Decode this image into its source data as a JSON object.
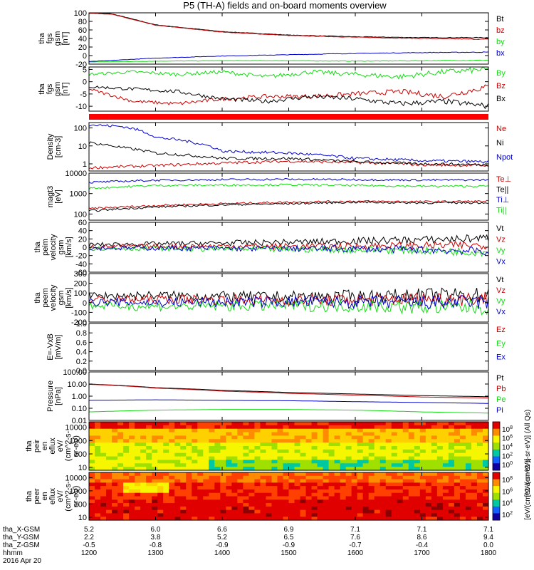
{
  "title": "P5 (TH-A) fields and on-board moments overview",
  "colors": {
    "black": "#000000",
    "red": "#cc0000",
    "green": "#11dd11",
    "blue": "#0000cc"
  },
  "chart_data": [
    {
      "type": "line",
      "panel": "fgs-gsm",
      "ylabel": [
        "tha",
        "fgs",
        "gsm",
        "[nT]"
      ],
      "yticks": [
        "100",
        "80",
        "60",
        "40",
        "20",
        "0",
        "-20"
      ],
      "ylim": [
        -20,
        100
      ],
      "series": [
        {
          "name": "Bt",
          "color": "black",
          "x": [
            0,
            20,
            60,
            120,
            180,
            240,
            300,
            360
          ],
          "values": [
            100,
            98,
            72,
            56,
            48,
            44,
            42,
            42
          ]
        },
        {
          "name": "bz",
          "color": "red",
          "x": [
            0,
            20,
            60,
            120,
            180,
            240,
            300,
            360
          ],
          "values": [
            99,
            97,
            71,
            55,
            47,
            43,
            40,
            38
          ]
        },
        {
          "name": "by",
          "color": "green",
          "x": [
            0,
            60,
            120,
            180,
            240,
            300,
            360
          ],
          "values": [
            -15,
            -13,
            -12,
            -12,
            -13,
            -12,
            -11
          ]
        },
        {
          "name": "bx",
          "color": "blue",
          "x": [
            0,
            60,
            120,
            180,
            240,
            300,
            360
          ],
          "values": [
            -14,
            -6,
            -1,
            2,
            5,
            7,
            8
          ]
        }
      ]
    },
    {
      "type": "line",
      "panel": "fgs-gsm-zoom",
      "ylabel": [
        "tha",
        "fgs",
        "gsm",
        "[nT]"
      ],
      "yticks": [
        "5",
        "0",
        "-5",
        "-10"
      ],
      "ylim": [
        -12,
        6
      ],
      "series": [
        {
          "name": "By",
          "color": "green",
          "x": [
            0,
            40,
            80,
            120,
            160,
            200,
            240,
            280,
            320,
            360
          ],
          "values": [
            3,
            4,
            3,
            4,
            2,
            4,
            3,
            2,
            4,
            5
          ]
        },
        {
          "name": "Bz",
          "color": "red",
          "x": [
            0,
            40,
            80,
            120,
            160,
            200,
            240,
            280,
            320,
            360
          ],
          "values": [
            -3,
            -8,
            -9,
            -7,
            -6,
            -6,
            -5,
            -4,
            -6,
            -2
          ]
        },
        {
          "name": "Bx",
          "color": "black",
          "x": [
            0,
            40,
            80,
            120,
            160,
            200,
            240,
            280,
            320,
            360
          ],
          "values": [
            -2,
            -3,
            -4,
            -7,
            -8,
            -6,
            -7,
            -9,
            -8,
            -10
          ]
        }
      ]
    },
    {
      "type": "line",
      "panel": "density",
      "ylabel": [
        "Density",
        "[cm-3]"
      ],
      "yticks": [
        "100",
        "10",
        "1"
      ],
      "ylim": [
        0.4,
        200
      ],
      "yscale": "log",
      "series": [
        {
          "name": "Ne",
          "color": "red",
          "x": [
            0,
            60,
            120,
            180,
            240,
            300,
            360
          ],
          "values": [
            0.6,
            0.8,
            1.1,
            1.4,
            1.2,
            0.9,
            0.8
          ]
        },
        {
          "name": "Ni",
          "color": "black",
          "x": [
            0,
            30,
            60,
            120,
            180,
            240,
            300,
            360
          ],
          "values": [
            15,
            8,
            4,
            2,
            2,
            1.3,
            1,
            0.9
          ]
        },
        {
          "name": "Npot",
          "color": "blue",
          "x": [
            0,
            30,
            60,
            120,
            180,
            240,
            300,
            360
          ],
          "values": [
            150,
            120,
            30,
            5,
            4,
            2,
            1.5,
            1.3
          ]
        }
      ]
    },
    {
      "type": "line",
      "panel": "temperature",
      "ylabel": [
        "magt3",
        "[eV]"
      ],
      "yticks": [
        "10000",
        "1000",
        "100"
      ],
      "ylim": [
        50,
        10000
      ],
      "yscale": "log",
      "series": [
        {
          "name": "Te⊥",
          "color": "red",
          "x": [
            0,
            60,
            120,
            180,
            240,
            300,
            360
          ],
          "values": [
            180,
            260,
            320,
            380,
            420,
            400,
            420
          ]
        },
        {
          "name": "Te||",
          "color": "black",
          "x": [
            0,
            60,
            120,
            180,
            240,
            300,
            360
          ],
          "values": [
            140,
            220,
            280,
            320,
            380,
            350,
            360
          ]
        },
        {
          "name": "Ti⊥",
          "color": "blue",
          "x": [
            0,
            60,
            120,
            180,
            240,
            300,
            360
          ],
          "values": [
            3500,
            4500,
            4800,
            5000,
            4800,
            4600,
            4700
          ]
        },
        {
          "name": "Ti||",
          "color": "green",
          "x": [
            0,
            60,
            120,
            180,
            240,
            300,
            360
          ],
          "values": [
            1800,
            2500,
            2600,
            2700,
            2500,
            2300,
            2300
          ]
        }
      ]
    },
    {
      "type": "line",
      "panel": "peim-velocity",
      "ylabel": [
        "tha",
        "peim",
        "velocity",
        "gsm",
        "[km/s]"
      ],
      "yticks": [
        "60",
        "40",
        "20",
        "0",
        "-20",
        "-40",
        "-60"
      ],
      "ylim": [
        -60,
        60
      ],
      "series": [
        {
          "name": "Vt",
          "color": "black",
          "x": [
            0,
            60,
            120,
            180,
            240,
            300,
            360
          ],
          "values": [
            6,
            8,
            10,
            12,
            15,
            18,
            22
          ]
        },
        {
          "name": "Vz",
          "color": "red",
          "x": [
            0,
            60,
            120,
            180,
            240,
            300,
            360
          ],
          "values": [
            2,
            2,
            3,
            2,
            3,
            4,
            5
          ]
        },
        {
          "name": "Vy",
          "color": "green",
          "x": [
            0,
            60,
            120,
            180,
            240,
            300,
            360
          ],
          "values": [
            -3,
            -3,
            -4,
            -5,
            -6,
            -8,
            -12
          ]
        },
        {
          "name": "Vx",
          "color": "blue",
          "x": [
            0,
            60,
            120,
            180,
            240,
            300,
            360
          ],
          "values": [
            -2,
            -2,
            -3,
            -3,
            -4,
            -6,
            -10
          ]
        }
      ]
    },
    {
      "type": "line",
      "panel": "peem-velocity",
      "ylabel": [
        "tha",
        "peem",
        "velocity",
        "gsm",
        "[km/s]"
      ],
      "yticks": [
        "300",
        "200",
        "100",
        "0",
        "-100",
        "-200"
      ],
      "ylim": [
        -200,
        300
      ],
      "series": [
        {
          "name": "Vt",
          "color": "black",
          "x": [
            0,
            60,
            120,
            180,
            240,
            300,
            360
          ],
          "values": [
            70,
            75,
            65,
            60,
            65,
            75,
            80
          ]
        },
        {
          "name": "Vz",
          "color": "red",
          "x": [
            0,
            60,
            120,
            180,
            240,
            300,
            360
          ],
          "values": [
            30,
            35,
            30,
            25,
            30,
            40,
            45
          ]
        },
        {
          "name": "Vy",
          "color": "green",
          "x": [
            0,
            60,
            120,
            180,
            240,
            300,
            360
          ],
          "values": [
            -30,
            -40,
            -35,
            -30,
            -35,
            -45,
            -50
          ]
        },
        {
          "name": "Vx",
          "color": "blue",
          "x": [
            0,
            60,
            120,
            180,
            240,
            300,
            360
          ],
          "values": [
            5,
            0,
            5,
            10,
            5,
            0,
            5
          ]
        }
      ]
    },
    {
      "type": "line",
      "panel": "efield",
      "ylabel": [
        "E=-VxB",
        "[mV/m]"
      ],
      "yticks": [
        "1.0",
        "0.8",
        "0.6",
        "0.4",
        "0.2",
        "0.0"
      ],
      "ylim": [
        0,
        1
      ],
      "series": [
        {
          "name": "Ez",
          "color": "red",
          "x": [],
          "values": []
        },
        {
          "name": "Ey",
          "color": "green",
          "x": [],
          "values": []
        },
        {
          "name": "Ex",
          "color": "blue",
          "x": [],
          "values": []
        }
      ]
    },
    {
      "type": "line",
      "panel": "pressure",
      "ylabel": [
        "Pressure",
        "[nPa]"
      ],
      "yticks": [
        "100.00",
        "10.00",
        "1.00",
        "0.10",
        "0.01"
      ],
      "ylim": [
        0.01,
        100
      ],
      "yscale": "log",
      "series": [
        {
          "name": "Pt",
          "color": "black",
          "x": [
            0,
            60,
            120,
            180,
            240,
            300,
            360
          ],
          "values": [
            10,
            5,
            3,
            2,
            1.5,
            1.1,
            0.9
          ]
        },
        {
          "name": "Pb",
          "color": "red",
          "x": [
            0,
            60,
            120,
            180,
            240,
            300,
            360
          ],
          "values": [
            9.5,
            4.6,
            2.6,
            1.7,
            1.2,
            0.85,
            0.7
          ]
        },
        {
          "name": "Pe",
          "color": "green",
          "x": [
            0,
            60,
            120,
            180,
            240,
            300,
            360
          ],
          "values": [
            0.05,
            0.07,
            0.08,
            0.08,
            0.07,
            0.05,
            0.04
          ]
        },
        {
          "name": "Pi",
          "color": "blue",
          "x": [
            0,
            60,
            120,
            180,
            240,
            300,
            360
          ],
          "values": [
            0.45,
            0.5,
            0.45,
            0.42,
            0.35,
            0.3,
            0.25
          ]
        }
      ]
    },
    {
      "type": "heatmap",
      "panel": "peir-spectrogram",
      "ylabel": [
        "tha",
        "peir",
        "en",
        "eflux",
        "eV/",
        "(cm^2-s-",
        "sr-eV)"
      ],
      "yticks": [
        "10000",
        "1000",
        "100",
        "10"
      ],
      "ylim": [
        6,
        25000
      ],
      "yscale": "log",
      "colorbar_label": "[eV/(cm^2-s-sr-eV)] (All Qs)",
      "colorbar_ticks": [
        "10^8",
        "10^6",
        "10^4",
        "10^2",
        "10^0"
      ],
      "zlim": [
        1,
        100000000
      ]
    },
    {
      "type": "heatmap",
      "panel": "peer-spectrogram",
      "ylabel": [
        "tha",
        "peer",
        "en",
        "eflux",
        "eV/",
        "(cm^2-s-",
        "sr-eV)"
      ],
      "yticks": [
        "10000",
        "1000",
        "100",
        "10"
      ],
      "ylim": [
        6,
        25000
      ],
      "yscale": "log",
      "colorbar_label": "[eV/(cm^2-s-sr-eV)]",
      "colorbar_ticks": [
        "10^8",
        "10^6",
        "10^4",
        "10^2"
      ],
      "zlim": [
        10,
        100000000
      ]
    }
  ],
  "ephemeris": {
    "labels": [
      "tha_X-GSM",
      "tha_Y-GSM",
      "tha_Z-GSM",
      "hhmm",
      "2016 Apr 20"
    ],
    "columns": [
      [
        "5.2",
        "2.2",
        "-0.5",
        "1200"
      ],
      [
        "6.0",
        "3.8",
        "-0.8",
        "1300"
      ],
      [
        "6.6",
        "5.2",
        "-0.9",
        "1400"
      ],
      [
        "6.9",
        "6.5",
        "-0.9",
        "1500"
      ],
      [
        "7.1",
        "7.6",
        "-0.7",
        "1600"
      ],
      [
        "7.1",
        "8.6",
        "-0.4",
        "1700"
      ],
      [
        "7.1",
        "9.4",
        "0.0",
        "1800"
      ]
    ]
  }
}
